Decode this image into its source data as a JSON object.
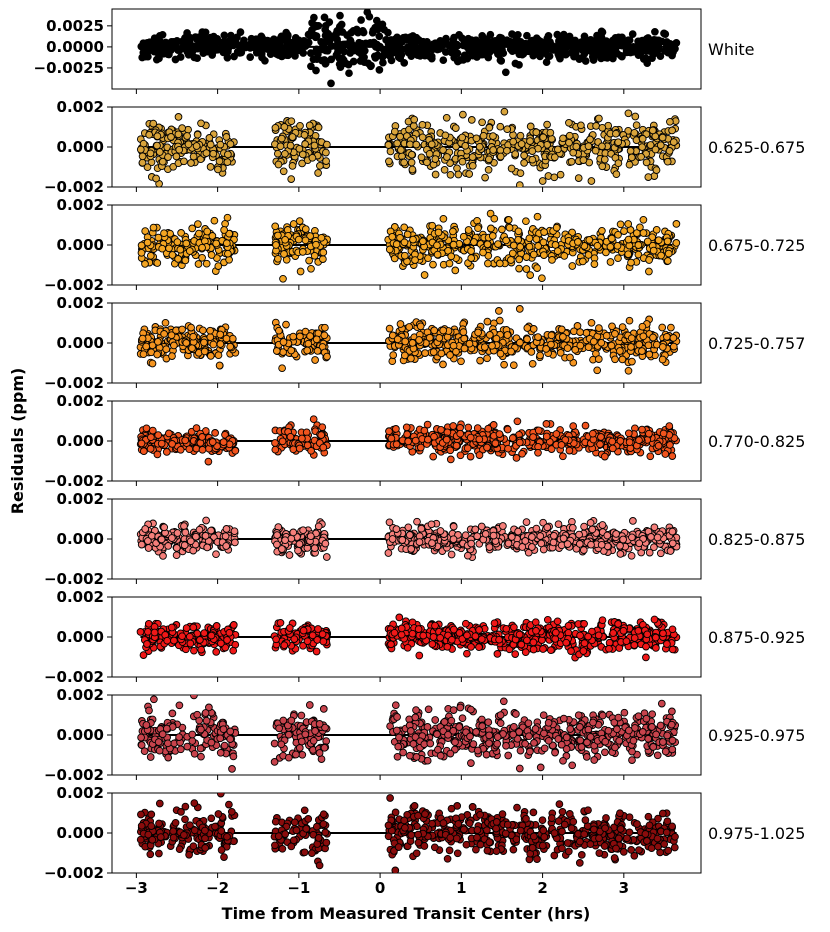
{
  "chart_data": {
    "type": "scatter",
    "title": "",
    "xlabel": "Time from Measured Transit Center (hrs)",
    "ylabel": "Residuals (ppm)",
    "x_ticks": [
      -3,
      -2,
      -1,
      0,
      1,
      2,
      3
    ],
    "x_tick_labels": [
      "−3",
      "−2",
      "−1",
      "0",
      "1",
      "2",
      "3"
    ],
    "xlim": [
      -3.3,
      3.95
    ],
    "x_segments": [
      [
        -2.95,
        -1.78
      ],
      [
        -1.3,
        -0.65
      ],
      [
        0.1,
        3.65
      ]
    ],
    "grid": false,
    "legend": "none",
    "panels": [
      {
        "name": "White",
        "color": "#000000",
        "ylim": [
          -0.005,
          0.0045
        ],
        "yticks": [
          0.0025,
          0.0,
          -0.0025
        ],
        "ytick_labels": [
          "0.0025",
          "0.0000",
          "−0.0025"
        ],
        "scatter_sd": 0.00075,
        "n_points": 900
      },
      {
        "name": "0.625-0.675",
        "color": "#d9a43b",
        "ylim": [
          -0.002,
          0.002
        ],
        "yticks": [
          0.002,
          0.0,
          -0.002
        ],
        "ytick_labels": [
          "0.002",
          "0.000",
          "−0.002"
        ],
        "scatter_sd": 0.00065,
        "n_points": 760
      },
      {
        "name": "0.675-0.725",
        "color": "#f3a522",
        "ylim": [
          -0.002,
          0.002
        ],
        "yticks": [
          0.002,
          0.0,
          -0.002
        ],
        "ytick_labels": [
          "0.002",
          "0.000",
          "−0.002"
        ],
        "scatter_sd": 0.0005,
        "n_points": 760
      },
      {
        "name": "0.725-0.757",
        "color": "#f59520",
        "ylim": [
          -0.002,
          0.002
        ],
        "yticks": [
          0.002,
          0.0,
          -0.002
        ],
        "ytick_labels": [
          "0.002",
          "0.000",
          "−0.002"
        ],
        "scatter_sd": 0.00045,
        "n_points": 760
      },
      {
        "name": "0.770-0.825",
        "color": "#f1541d",
        "ylim": [
          -0.002,
          0.002
        ],
        "yticks": [
          0.002,
          0.0,
          -0.002
        ],
        "ytick_labels": [
          "0.002",
          "0.000",
          "−0.002"
        ],
        "scatter_sd": 0.00033,
        "n_points": 760
      },
      {
        "name": "0.825-0.875",
        "color": "#f57f7a",
        "ylim": [
          -0.002,
          0.002
        ],
        "yticks": [
          0.002,
          0.0,
          -0.002
        ],
        "ytick_labels": [
          "0.002",
          "0.000",
          "−0.002"
        ],
        "scatter_sd": 0.00033,
        "n_points": 760
      },
      {
        "name": "0.875-0.925",
        "color": "#f01818",
        "ylim": [
          -0.002,
          0.002
        ],
        "yticks": [
          0.002,
          0.0,
          -0.002
        ],
        "ytick_labels": [
          "0.002",
          "0.000",
          "−0.002"
        ],
        "scatter_sd": 0.00035,
        "n_points": 760
      },
      {
        "name": "0.925-0.975",
        "color": "#c8434c",
        "ylim": [
          -0.002,
          0.002
        ],
        "yticks": [
          0.002,
          0.0,
          -0.002
        ],
        "ytick_labels": [
          "0.002",
          "0.000",
          "−0.002"
        ],
        "scatter_sd": 0.0006,
        "n_points": 760
      },
      {
        "name": "0.975-1.025",
        "color": "#8a0c0c",
        "ylim": [
          -0.002,
          0.002
        ],
        "yticks": [
          0.002,
          0.0,
          -0.002
        ],
        "ytick_labels": [
          "0.002",
          "0.000",
          "−0.002"
        ],
        "scatter_sd": 0.00055,
        "n_points": 760
      }
    ]
  }
}
